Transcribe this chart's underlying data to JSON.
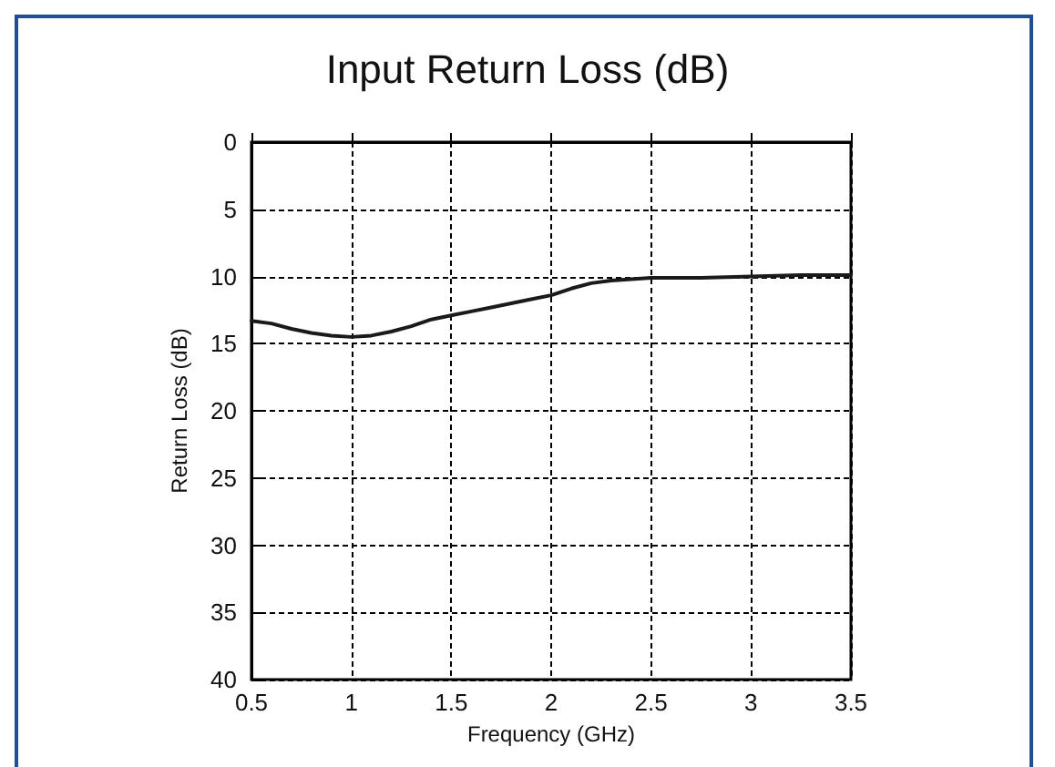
{
  "chart_data": {
    "type": "line",
    "title": "Input Return Loss (dB)",
    "xlabel": "Frequency (GHz)",
    "ylabel": "Return Loss (dB)",
    "x": [
      0.5,
      0.6,
      0.7,
      0.8,
      0.9,
      1.0,
      1.1,
      1.2,
      1.3,
      1.4,
      1.5,
      1.6,
      1.7,
      1.8,
      1.9,
      2.0,
      2.1,
      2.2,
      2.3,
      2.4,
      2.5,
      2.75,
      3.0,
      3.25,
      3.5
    ],
    "series": [
      {
        "color": "#1a1a1a",
        "values": [
          13.3,
          13.5,
          13.9,
          14.2,
          14.4,
          14.5,
          14.4,
          14.1,
          13.7,
          13.2,
          12.9,
          12.6,
          12.3,
          12.0,
          11.7,
          11.4,
          10.9,
          10.5,
          10.3,
          10.2,
          10.1,
          10.1,
          10.0,
          9.9,
          9.9
        ]
      }
    ],
    "xlim": [
      0.5,
      3.5
    ],
    "xticks": [
      0.5,
      1,
      1.5,
      2,
      2.5,
      3,
      3.5
    ],
    "ylim": [
      40,
      0
    ],
    "yticks": [
      0,
      5,
      10,
      15,
      20,
      25,
      30,
      35,
      40
    ],
    "grid": true,
    "marker": "none",
    "line_style": "solid"
  }
}
